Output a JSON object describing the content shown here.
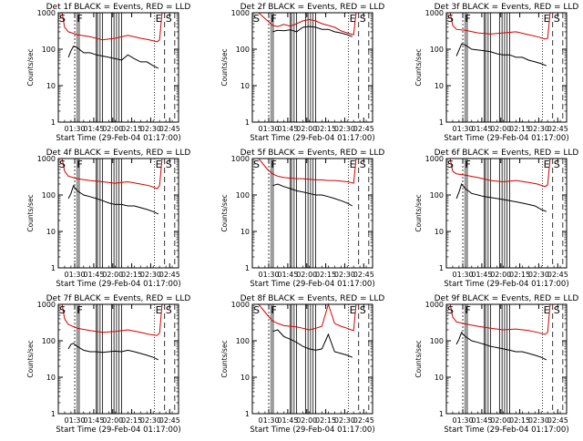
{
  "colors": {
    "events": "#000000",
    "lld": "#d40000",
    "axes": "#000000",
    "background": "#ffffff"
  },
  "common": {
    "xlabel": "Start Time (29-Feb-04 01:17:00)",
    "ylabel": "Counts/sec",
    "x_range_minutes_after_0117": [
      0,
      95
    ],
    "y_range": [
      1,
      1000
    ],
    "y_scale": "log",
    "x_tick_labels": [
      "01:30",
      "01:45",
      "02:00",
      "02:15",
      "02:30",
      "02:45"
    ],
    "y_tick_labels": [
      "1",
      "10",
      "100",
      "1000"
    ]
  },
  "chart_data": [
    {
      "type": "line",
      "title": "Det 1f BLACK = Events, RED = LLD",
      "series": [
        {
          "key": "lld",
          "x": [
            0,
            3,
            5,
            8,
            15,
            25,
            35,
            45,
            55,
            65,
            72,
            78,
            80,
            82,
            84,
            86,
            95
          ],
          "y": [
            1000,
            1000,
            400,
            300,
            250,
            220,
            180,
            200,
            240,
            200,
            180,
            160,
            180,
            1000,
            1000,
            1000,
            1000
          ]
        },
        {
          "key": "events",
          "x": [
            8,
            10,
            12,
            15,
            20,
            25,
            30,
            35,
            40,
            45,
            50,
            55,
            60,
            65,
            70,
            75,
            79
          ],
          "y": [
            60,
            90,
            120,
            110,
            80,
            80,
            70,
            65,
            60,
            55,
            50,
            70,
            55,
            45,
            45,
            35,
            30
          ]
        }
      ],
      "flags": [
        {
          "x": 0,
          "label": "S"
        },
        {
          "x": 14,
          "label": "F"
        },
        {
          "x": 76,
          "label": "E"
        },
        {
          "x": 84,
          "label": "S"
        }
      ]
    },
    {
      "type": "line",
      "title": "Det 2f BLACK = Events, RED = LLD",
      "series": [
        {
          "key": "lld",
          "x": [
            0,
            5,
            12,
            16,
            20,
            25,
            30,
            35,
            40,
            45,
            50,
            55,
            60,
            65,
            70,
            75,
            78,
            80,
            82,
            84,
            95
          ],
          "y": [
            1000,
            1000,
            600,
            450,
            420,
            480,
            430,
            500,
            600,
            650,
            600,
            500,
            450,
            400,
            320,
            280,
            260,
            250,
            1000,
            1000,
            1000
          ]
        },
        {
          "key": "events",
          "x": [
            16,
            20,
            25,
            30,
            35,
            40,
            45,
            50,
            55,
            60,
            65,
            70,
            75,
            79
          ],
          "y": [
            300,
            330,
            320,
            340,
            300,
            400,
            420,
            400,
            350,
            350,
            300,
            280,
            250,
            220
          ]
        }
      ],
      "flags": [
        {
          "x": 0,
          "label": "S"
        },
        {
          "x": 14,
          "label": "F"
        },
        {
          "x": 76,
          "label": "E"
        },
        {
          "x": 84,
          "label": "S"
        }
      ]
    },
    {
      "type": "line",
      "title": "Det 3f BLACK = Events, RED = LLD",
      "series": [
        {
          "key": "lld",
          "x": [
            0,
            3,
            5,
            8,
            15,
            25,
            35,
            45,
            55,
            65,
            72,
            78,
            80,
            82,
            84,
            86,
            95
          ],
          "y": [
            1000,
            1000,
            450,
            350,
            330,
            280,
            260,
            280,
            300,
            250,
            220,
            190,
            200,
            1000,
            1000,
            1000,
            1000
          ]
        },
        {
          "key": "events",
          "x": [
            8,
            10,
            12,
            15,
            20,
            25,
            30,
            35,
            40,
            45,
            50,
            55,
            60,
            65,
            70,
            75,
            79
          ],
          "y": [
            65,
            95,
            140,
            130,
            100,
            95,
            90,
            85,
            75,
            70,
            70,
            60,
            60,
            50,
            45,
            40,
            35
          ]
        }
      ],
      "flags": [
        {
          "x": 0,
          "label": "S"
        },
        {
          "x": 14,
          "label": "F"
        },
        {
          "x": 76,
          "label": "E"
        },
        {
          "x": 84,
          "label": "S"
        }
      ]
    },
    {
      "type": "line",
      "title": "Det 4f BLACK = Events, RED = LLD",
      "series": [
        {
          "key": "lld",
          "x": [
            0,
            3,
            5,
            8,
            15,
            25,
            35,
            45,
            55,
            65,
            72,
            78,
            80,
            82,
            84,
            86,
            95
          ],
          "y": [
            1000,
            1000,
            450,
            330,
            280,
            250,
            230,
            210,
            230,
            200,
            180,
            150,
            180,
            1000,
            1000,
            1000,
            1000
          ]
        },
        {
          "key": "events",
          "x": [
            8,
            10,
            12,
            15,
            20,
            25,
            30,
            35,
            40,
            45,
            50,
            55,
            60,
            65,
            70,
            75,
            79
          ],
          "y": [
            80,
            110,
            180,
            130,
            100,
            90,
            80,
            70,
            60,
            55,
            55,
            50,
            50,
            45,
            40,
            35,
            30
          ]
        }
      ],
      "flags": [
        {
          "x": 0,
          "label": "S"
        },
        {
          "x": 14,
          "label": "F"
        },
        {
          "x": 76,
          "label": "E"
        },
        {
          "x": 84,
          "label": "S"
        }
      ]
    },
    {
      "type": "line",
      "title": "Det 5f BLACK = Events, RED = LLD",
      "series": [
        {
          "key": "lld",
          "x": [
            0,
            5,
            12,
            16,
            20,
            25,
            30,
            35,
            40,
            45,
            50,
            55,
            60,
            65,
            70,
            75,
            78,
            80,
            82,
            84,
            95
          ],
          "y": [
            1000,
            1000,
            500,
            380,
            330,
            300,
            290,
            280,
            280,
            270,
            260,
            260,
            250,
            250,
            240,
            230,
            220,
            210,
            1000,
            1000,
            1000
          ]
        },
        {
          "key": "events",
          "x": [
            16,
            20,
            25,
            30,
            35,
            40,
            45,
            50,
            55,
            60,
            65,
            70,
            75,
            79
          ],
          "y": [
            180,
            200,
            170,
            150,
            130,
            120,
            110,
            100,
            100,
            90,
            80,
            70,
            60,
            50
          ]
        }
      ],
      "flags": [
        {
          "x": 0,
          "label": "S"
        },
        {
          "x": 14,
          "label": "F"
        },
        {
          "x": 76,
          "label": "E"
        },
        {
          "x": 84,
          "label": "S"
        }
      ]
    },
    {
      "type": "line",
      "title": "Det 6f BLACK = Events, RED = LLD",
      "series": [
        {
          "key": "lld",
          "x": [
            0,
            3,
            5,
            8,
            15,
            25,
            35,
            45,
            55,
            65,
            72,
            78,
            80,
            82,
            84,
            86,
            95
          ],
          "y": [
            1000,
            1000,
            450,
            380,
            350,
            300,
            250,
            230,
            250,
            220,
            200,
            170,
            190,
            1000,
            1000,
            1000,
            1000
          ]
        },
        {
          "key": "events",
          "x": [
            8,
            10,
            12,
            15,
            20,
            25,
            30,
            35,
            40,
            45,
            50,
            55,
            60,
            65,
            70,
            75,
            79
          ],
          "y": [
            80,
            120,
            200,
            150,
            110,
            100,
            90,
            85,
            80,
            75,
            70,
            65,
            60,
            55,
            50,
            40,
            35
          ]
        }
      ],
      "flags": [
        {
          "x": 0,
          "label": "S"
        },
        {
          "x": 14,
          "label": "F"
        },
        {
          "x": 76,
          "label": "E"
        },
        {
          "x": 84,
          "label": "S"
        }
      ]
    },
    {
      "type": "line",
      "title": "Det 7f BLACK = Events, RED = LLD",
      "series": [
        {
          "key": "lld",
          "x": [
            0,
            3,
            5,
            8,
            15,
            25,
            35,
            45,
            55,
            65,
            72,
            78,
            80,
            82,
            84,
            86,
            95
          ],
          "y": [
            1000,
            1000,
            400,
            280,
            220,
            190,
            170,
            180,
            200,
            170,
            150,
            140,
            160,
            1000,
            1000,
            1000,
            1000
          ]
        },
        {
          "key": "events",
          "x": [
            8,
            10,
            12,
            15,
            20,
            25,
            30,
            35,
            40,
            45,
            50,
            55,
            60,
            65,
            70,
            75,
            79
          ],
          "y": [
            60,
            80,
            85,
            70,
            55,
            50,
            50,
            48,
            50,
            52,
            50,
            55,
            50,
            45,
            40,
            35,
            30
          ]
        }
      ],
      "flags": [
        {
          "x": 0,
          "label": "S"
        },
        {
          "x": 14,
          "label": "F"
        },
        {
          "x": 76,
          "label": "E"
        },
        {
          "x": 84,
          "label": "S"
        }
      ]
    },
    {
      "type": "line",
      "title": "Det 8f BLACK = Events, RED = LLD",
      "series": [
        {
          "key": "lld",
          "x": [
            0,
            5,
            12,
            16,
            20,
            25,
            30,
            35,
            40,
            45,
            50,
            55,
            60,
            65,
            70,
            75,
            78,
            80,
            82,
            84,
            95
          ],
          "y": [
            1000,
            1000,
            500,
            350,
            300,
            260,
            250,
            240,
            220,
            200,
            220,
            250,
            1000,
            300,
            250,
            220,
            200,
            190,
            1000,
            1000,
            1000
          ]
        },
        {
          "key": "events",
          "x": [
            16,
            20,
            25,
            30,
            35,
            40,
            45,
            50,
            55,
            60,
            65,
            70,
            75,
            79
          ],
          "y": [
            180,
            200,
            130,
            110,
            90,
            70,
            60,
            55,
            60,
            150,
            50,
            45,
            40,
            35
          ]
        }
      ],
      "flags": [
        {
          "x": 0,
          "label": "S"
        },
        {
          "x": 14,
          "label": "F"
        },
        {
          "x": 76,
          "label": "E"
        },
        {
          "x": 84,
          "label": "S"
        }
      ]
    },
    {
      "type": "line",
      "title": "Det 9f BLACK = Events, RED = LLD",
      "series": [
        {
          "key": "lld",
          "x": [
            0,
            3,
            5,
            8,
            15,
            25,
            35,
            45,
            55,
            65,
            72,
            78,
            80,
            82,
            84,
            86,
            95
          ],
          "y": [
            1000,
            1000,
            450,
            330,
            290,
            250,
            220,
            200,
            210,
            190,
            170,
            150,
            170,
            1000,
            1000,
            1000,
            1000
          ]
        },
        {
          "key": "events",
          "x": [
            8,
            10,
            12,
            15,
            20,
            25,
            30,
            35,
            40,
            45,
            50,
            55,
            60,
            65,
            70,
            75,
            79
          ],
          "y": [
            80,
            110,
            170,
            130,
            100,
            90,
            80,
            70,
            65,
            60,
            55,
            50,
            50,
            45,
            40,
            35,
            30
          ]
        }
      ],
      "flags": [
        {
          "x": 0,
          "label": "S"
        },
        {
          "x": 14,
          "label": "F"
        },
        {
          "x": 76,
          "label": "E"
        },
        {
          "x": 84,
          "label": "S"
        }
      ]
    }
  ]
}
